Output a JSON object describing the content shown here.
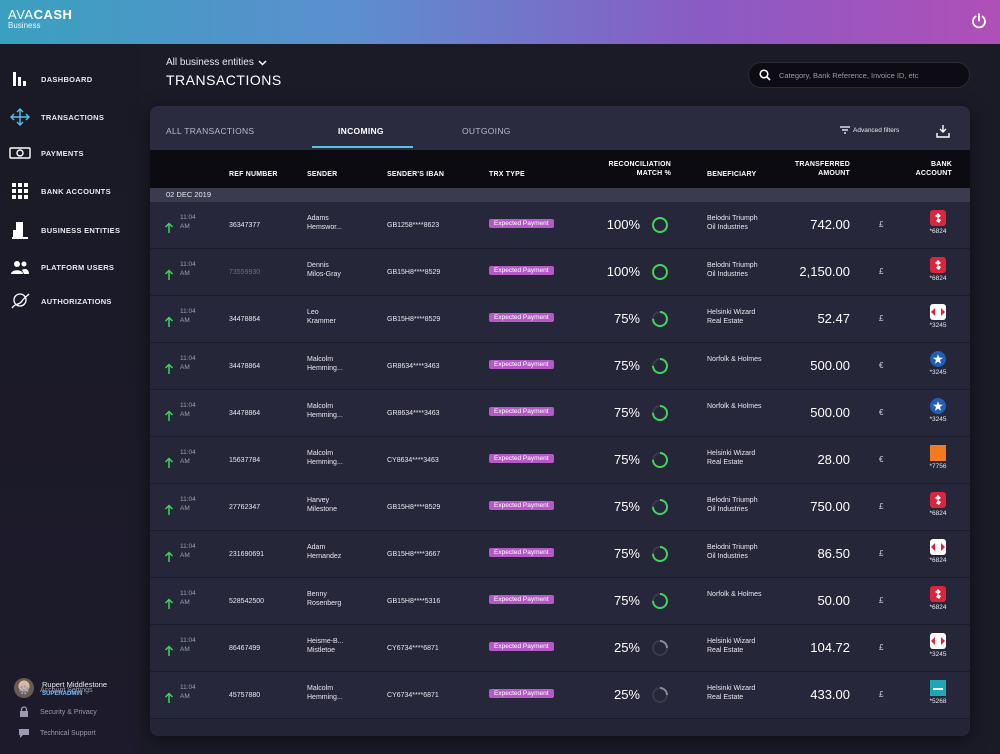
{
  "brand": {
    "name_light": "AVA",
    "name_bold": "CASH",
    "sub": "Business"
  },
  "nav": [
    {
      "label": "DASHBOARD",
      "icon": "bar-chart-icon"
    },
    {
      "label": "TRANSACTIONS",
      "icon": "arrows-icon"
    },
    {
      "label": "PAYMENTS",
      "icon": "cash-icon"
    },
    {
      "label": "BANK ACCOUNTS",
      "icon": "grid-icon"
    },
    {
      "label": "BUSINESS ENTITIES",
      "icon": "building-icon"
    },
    {
      "label": "PLATFORM USERS",
      "icon": "users-icon"
    },
    {
      "label": "AUTHORIZATIONS",
      "icon": "signature-icon"
    }
  ],
  "user": {
    "name": "Rupert Middlestone",
    "role": "SUPERADMIN"
  },
  "footer": [
    {
      "label": "Account Settings",
      "icon": "gear-icon"
    },
    {
      "label": "Security & Privacy",
      "icon": "lock-icon"
    },
    {
      "label": "Technical Support",
      "icon": "chat-icon"
    }
  ],
  "header": {
    "entities": "All business entities",
    "title": "TRANSACTIONS",
    "search_placeholder": "Category, Bank Reference, Invoice ID, etc"
  },
  "tabs": {
    "all": "ALL TRANSACTIONS",
    "incoming": "INCOMING",
    "outgoing": "OUTGOING",
    "advanced": "Advanced filters"
  },
  "columns": {
    "ref": "REF NUMBER",
    "sender": "SENDER",
    "iban": "SENDER'S IBAN",
    "trx": "TRX TYPE",
    "recon1": "RECONCILIATION",
    "recon2": "MATCH %",
    "benef": "BENEFICIARY",
    "amount1": "TRANSFERRED",
    "amount2": "AMOUNT",
    "bank1": "BANK",
    "bank2": "ACCOUNT"
  },
  "date_group": "02 DEC 2019",
  "colors": {
    "accent": "#5ac0e6",
    "badge": "#b45ac6",
    "ring": "#3fd45a",
    "arrow": "#3fd45a"
  },
  "transactions": [
    {
      "time1": "11:04",
      "time2": "AM",
      "ref": "36347377",
      "ref_dim": false,
      "sender1": "Adams",
      "sender2": "Hemswor...",
      "iban": "GB1258****8623",
      "type": "Expected Payment",
      "match": "100%",
      "match_frac": 1.0,
      "benef1": "Belodni Triumph",
      "benef2": "Oil Industries",
      "amount": "742.00",
      "currency": "£",
      "bank_logo": "rbs",
      "bank_suffix": "*6824"
    },
    {
      "time1": "11:04",
      "time2": "AM",
      "ref": "73559930",
      "ref_dim": true,
      "sender1": "Dennis",
      "sender2": "Milos-Gray",
      "iban": "GB15H8****8529",
      "type": "Expected Payment",
      "match": "100%",
      "match_frac": 1.0,
      "benef1": "Belodni Triumph",
      "benef2": "Oil Industries",
      "amount": "2,150.00",
      "currency": "£",
      "bank_logo": "rbs",
      "bank_suffix": "*6824"
    },
    {
      "time1": "11:04",
      "time2": "AM",
      "ref": "34478864",
      "ref_dim": false,
      "sender1": "Leo",
      "sender2": "Krammer",
      "iban": "GB15H8****8529",
      "type": "Expected Payment",
      "match": "75%",
      "match_frac": 0.75,
      "benef1": "Helsinki Wizard",
      "benef2": "Real Estate",
      "amount": "52.47",
      "currency": "£",
      "bank_logo": "hsbc",
      "bank_suffix": "*3245"
    },
    {
      "time1": "11:04",
      "time2": "AM",
      "ref": "34478864",
      "ref_dim": false,
      "sender1": "Malcolm",
      "sender2": "Hemming...",
      "iban": "GR8634****3463",
      "type": "Expected Payment",
      "match": "75%",
      "match_frac": 0.75,
      "benef1": "Norfolk & Holmes",
      "benef2": "",
      "amount": "500.00",
      "currency": "€",
      "bank_logo": "star",
      "bank_suffix": "*3245"
    },
    {
      "time1": "11:04",
      "time2": "AM",
      "ref": "34478864",
      "ref_dim": false,
      "sender1": "Malcolm",
      "sender2": "Hemming...",
      "iban": "GR8634****3463",
      "type": "Expected Payment",
      "match": "75%",
      "match_frac": 0.75,
      "benef1": "Norfolk & Holmes",
      "benef2": "",
      "amount": "500.00",
      "currency": "€",
      "bank_logo": "star",
      "bank_suffix": "*3245"
    },
    {
      "time1": "11:04",
      "time2": "AM",
      "ref": "15637784",
      "ref_dim": false,
      "sender1": "Malcolm",
      "sender2": "Hemming...",
      "iban": "CY8634****3463",
      "type": "Expected Payment",
      "match": "75%",
      "match_frac": 0.75,
      "benef1": "Helsinki Wizard",
      "benef2": "Real Estate",
      "amount": "28.00",
      "currency": "€",
      "bank_logo": "orange",
      "bank_suffix": "*7756"
    },
    {
      "time1": "11:04",
      "time2": "AM",
      "ref": "27762347",
      "ref_dim": false,
      "sender1": "Harvey",
      "sender2": "Milestone",
      "iban": "GB15H8****8529",
      "type": "Expected Payment",
      "match": "75%",
      "match_frac": 0.75,
      "benef1": "Belodni Triumph",
      "benef2": "Oil Industries",
      "amount": "750.00",
      "currency": "£",
      "bank_logo": "rbs",
      "bank_suffix": "*6824"
    },
    {
      "time1": "11:04",
      "time2": "AM",
      "ref": "231690691",
      "ref_dim": false,
      "sender1": "Adam",
      "sender2": "Hernandez",
      "iban": "GB15H8****3667",
      "type": "Expected Payment",
      "match": "75%",
      "match_frac": 0.75,
      "benef1": "Belodni Triumph",
      "benef2": "Oil Industries",
      "amount": "86.50",
      "currency": "£",
      "bank_logo": "hsbc",
      "bank_suffix": "*6824"
    },
    {
      "time1": "11:04",
      "time2": "AM",
      "ref": "528542500",
      "ref_dim": false,
      "sender1": "Benny",
      "sender2": "Rosenberg",
      "iban": "GB15H8****5316",
      "type": "Expected Payment",
      "match": "75%",
      "match_frac": 0.75,
      "benef1": "Norfolk & Holmes",
      "benef2": "",
      "amount": "50.00",
      "currency": "£",
      "bank_logo": "rbs",
      "bank_suffix": "*6824"
    },
    {
      "time1": "11:04",
      "time2": "AM",
      "ref": "86467499",
      "ref_dim": false,
      "sender1": "Heisme-B...",
      "sender2": "Mistletoe",
      "iban": "CY6734****6871",
      "type": "Expected Payment",
      "match": "25%",
      "match_frac": 0.25,
      "benef1": "Helsinki Wizard",
      "benef2": "Real Estate",
      "amount": "104.72",
      "currency": "£",
      "bank_logo": "hsbc",
      "bank_suffix": "*3245"
    },
    {
      "time1": "11:04",
      "time2": "AM",
      "ref": "45757880",
      "ref_dim": false,
      "sender1": "Malcolm",
      "sender2": "Hemming...",
      "iban": "CY6734****6871",
      "type": "Expected Payment",
      "match": "25%",
      "match_frac": 0.25,
      "benef1": "Helsinki Wizard",
      "benef2": "Real Estate",
      "amount": "433.00",
      "currency": "£",
      "bank_logo": "teal",
      "bank_suffix": "*5268"
    }
  ]
}
